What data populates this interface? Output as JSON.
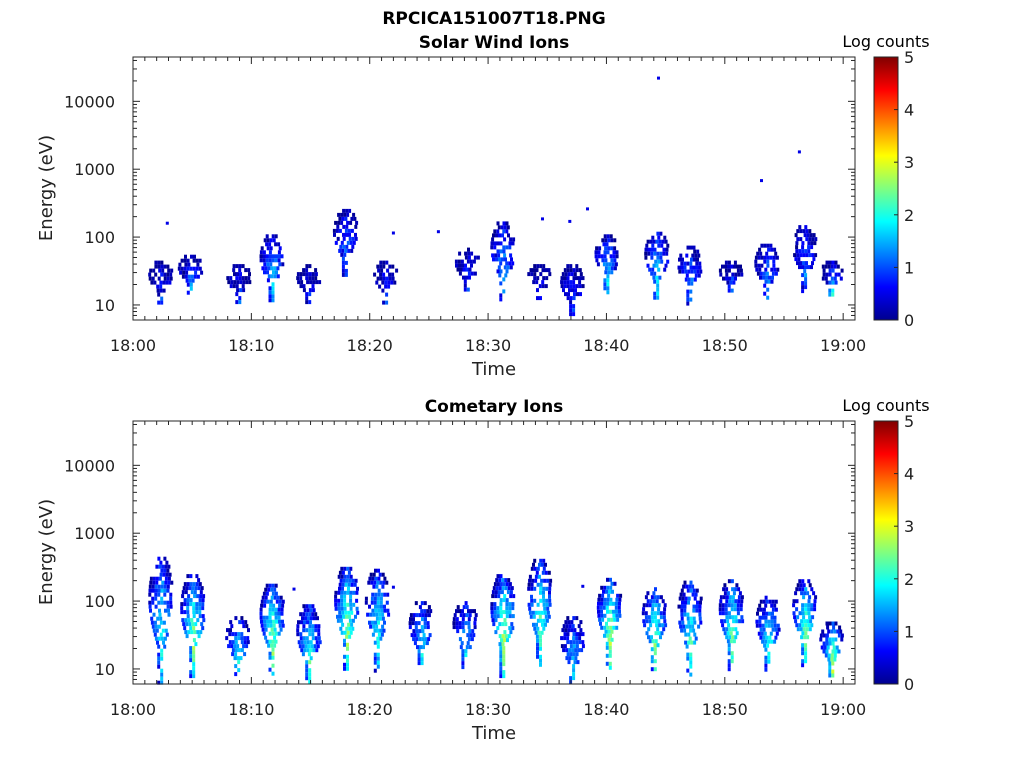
{
  "figure_title": "RPCICA151007T18.PNG",
  "colorbar": {
    "label": "Log counts",
    "ticks": [
      "0",
      "1",
      "2",
      "3",
      "4",
      "5"
    ],
    "range": [
      0,
      5
    ],
    "colormap": "jet"
  },
  "chart_data": [
    {
      "type": "heatmap",
      "title": "Solar Wind Ions",
      "xlabel": "Time",
      "ylabel": "Energy (eV)",
      "x_tick_labels": [
        "18:00",
        "18:10",
        "18:20",
        "18:30",
        "18:40",
        "18:50",
        "19:00"
      ],
      "x_ticks_min": [
        0,
        10,
        20,
        30,
        40,
        50,
        60
      ],
      "xlim_min": [
        0,
        61
      ],
      "y_tick_labels": [
        "10",
        "100",
        "1000",
        "10000"
      ],
      "y_ticks": [
        10,
        100,
        1000,
        10000
      ],
      "ylim": [
        6,
        45000
      ],
      "y_scale": "log",
      "colorbar_label": "Log counts",
      "clim": [
        0,
        5
      ],
      "bursts": [
        {
          "t": 2.3,
          "emin": 11,
          "emax": 45,
          "peak": 0.9
        },
        {
          "t": 4.8,
          "emin": 16,
          "emax": 55,
          "peak": 1.5
        },
        {
          "t": 8.9,
          "emin": 11,
          "emax": 40,
          "peak": 1.0
        },
        {
          "t": 11.7,
          "emin": 11,
          "emax": 110,
          "peak": 1.8
        },
        {
          "t": 14.8,
          "emin": 11,
          "emax": 40,
          "peak": 0.8
        },
        {
          "t": 17.9,
          "emin": 26,
          "emax": 260,
          "peak": 1.2
        },
        {
          "t": 21.3,
          "emin": 11,
          "emax": 45,
          "peak": 0.9
        },
        {
          "t": 28.2,
          "emin": 16,
          "emax": 70,
          "peak": 1.0
        },
        {
          "t": 31.2,
          "emin": 12,
          "emax": 170,
          "peak": 1.5
        },
        {
          "t": 34.3,
          "emin": 13,
          "emax": 40,
          "peak": 0.7
        },
        {
          "t": 37.1,
          "emin": 7,
          "emax": 40,
          "peak": 1.0
        },
        {
          "t": 40.0,
          "emin": 16,
          "emax": 110,
          "peak": 1.8
        },
        {
          "t": 44.2,
          "emin": 13,
          "emax": 120,
          "peak": 1.8
        },
        {
          "t": 47.0,
          "emin": 11,
          "emax": 75,
          "peak": 1.5
        },
        {
          "t": 50.5,
          "emin": 16,
          "emax": 45,
          "peak": 1.3
        },
        {
          "t": 53.5,
          "emin": 12,
          "emax": 80,
          "peak": 1.4
        },
        {
          "t": 56.7,
          "emin": 16,
          "emax": 150,
          "peak": 1.2
        },
        {
          "t": 59.0,
          "emin": 15,
          "emax": 45,
          "peak": 2.0
        }
      ],
      "scatter_points": [
        {
          "t": 44.4,
          "e": 22000,
          "v": 0.5
        },
        {
          "t": 56.3,
          "e": 1800,
          "v": 0.5
        },
        {
          "t": 53.1,
          "e": 680,
          "v": 0.5
        },
        {
          "t": 38.4,
          "e": 260,
          "v": 0.5
        },
        {
          "t": 34.6,
          "e": 185,
          "v": 0.5
        },
        {
          "t": 36.9,
          "e": 170,
          "v": 0.5
        },
        {
          "t": 25.8,
          "e": 120,
          "v": 0.5
        },
        {
          "t": 22.0,
          "e": 115,
          "v": 0.5
        },
        {
          "t": 2.9,
          "e": 160,
          "v": 0.5
        }
      ]
    },
    {
      "type": "heatmap",
      "title": "Cometary Ions",
      "xlabel": "Time",
      "ylabel": "Energy (eV)",
      "x_tick_labels": [
        "18:00",
        "18:10",
        "18:20",
        "18:30",
        "18:40",
        "18:50",
        "19:00"
      ],
      "x_ticks_min": [
        0,
        10,
        20,
        30,
        40,
        50,
        60
      ],
      "xlim_min": [
        0,
        61
      ],
      "y_tick_labels": [
        "10",
        "100",
        "1000",
        "10000"
      ],
      "y_ticks": [
        10,
        100,
        1000,
        10000
      ],
      "ylim": [
        6,
        45000
      ],
      "y_scale": "log",
      "colorbar_label": "Log counts",
      "clim": [
        0,
        5
      ],
      "bursts": [
        {
          "t": 2.3,
          "emin": 6,
          "emax": 450,
          "peak": 2.0
        },
        {
          "t": 5.0,
          "emin": 8,
          "emax": 250,
          "peak": 2.6
        },
        {
          "t": 8.8,
          "emin": 8,
          "emax": 60,
          "peak": 2.2
        },
        {
          "t": 11.7,
          "emin": 8,
          "emax": 180,
          "peak": 2.6
        },
        {
          "t": 14.8,
          "emin": 6,
          "emax": 90,
          "peak": 2.2
        },
        {
          "t": 18.0,
          "emin": 10,
          "emax": 320,
          "peak": 2.7
        },
        {
          "t": 20.6,
          "emin": 10,
          "emax": 300,
          "peak": 2.0
        },
        {
          "t": 24.3,
          "emin": 10,
          "emax": 100,
          "peak": 2.0
        },
        {
          "t": 28.0,
          "emin": 10,
          "emax": 100,
          "peak": 1.8
        },
        {
          "t": 31.2,
          "emin": 8,
          "emax": 250,
          "peak": 2.8
        },
        {
          "t": 34.3,
          "emin": 10,
          "emax": 420,
          "peak": 2.4
        },
        {
          "t": 37.1,
          "emin": 6,
          "emax": 60,
          "peak": 1.7
        },
        {
          "t": 40.2,
          "emin": 10,
          "emax": 220,
          "peak": 2.8
        },
        {
          "t": 44.0,
          "emin": 10,
          "emax": 160,
          "peak": 2.6
        },
        {
          "t": 47.0,
          "emin": 8,
          "emax": 200,
          "peak": 2.3
        },
        {
          "t": 50.5,
          "emin": 10,
          "emax": 210,
          "peak": 2.5
        },
        {
          "t": 53.6,
          "emin": 10,
          "emax": 120,
          "peak": 2.2
        },
        {
          "t": 56.7,
          "emin": 12,
          "emax": 210,
          "peak": 2.6
        },
        {
          "t": 59.0,
          "emin": 8,
          "emax": 50,
          "peak": 3.0
        }
      ],
      "scatter_points": [
        {
          "t": 38.0,
          "e": 165,
          "v": 0.5
        },
        {
          "t": 13.6,
          "e": 150,
          "v": 0.5
        },
        {
          "t": 22.0,
          "e": 160,
          "v": 0.5
        }
      ]
    }
  ]
}
